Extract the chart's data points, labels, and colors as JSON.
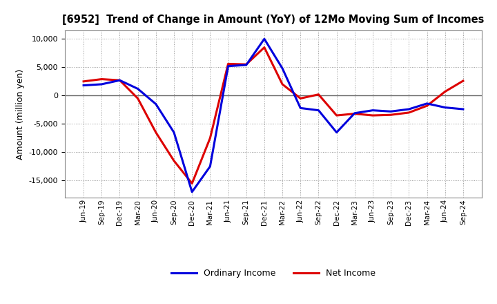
{
  "title": "[6952]  Trend of Change in Amount (YoY) of 12Mo Moving Sum of Incomes",
  "ylabel": "Amount (million yen)",
  "x_labels": [
    "Jun-19",
    "Sep-19",
    "Dec-19",
    "Mar-20",
    "Jun-20",
    "Sep-20",
    "Dec-20",
    "Mar-21",
    "Jun-21",
    "Sep-21",
    "Dec-21",
    "Mar-22",
    "Jun-22",
    "Sep-22",
    "Dec-22",
    "Mar-23",
    "Jun-23",
    "Sep-23",
    "Dec-23",
    "Mar-24",
    "Jun-24",
    "Sep-24"
  ],
  "ordinary_income": [
    1800,
    2000,
    2700,
    1200,
    -1500,
    -6500,
    -17000,
    -12500,
    5200,
    5400,
    10000,
    4800,
    -2200,
    -2600,
    -6500,
    -3100,
    -2600,
    -2800,
    -2400,
    -1400,
    -2100,
    -2400
  ],
  "net_income": [
    2500,
    2900,
    2700,
    -500,
    -6500,
    -11500,
    -15500,
    -7500,
    5600,
    5500,
    8500,
    2000,
    -500,
    200,
    -3500,
    -3200,
    -3500,
    -3400,
    -3000,
    -1800,
    700,
    2600
  ],
  "ordinary_color": "#0000dd",
  "net_color": "#dd0000",
  "background_color": "#ffffff",
  "grid_color": "#999999",
  "ylim": [
    -18000,
    11500
  ],
  "yticks": [
    -15000,
    -10000,
    -5000,
    0,
    5000,
    10000
  ],
  "line_width": 2.2,
  "legend_ordinary": "Ordinary Income",
  "legend_net": "Net Income"
}
